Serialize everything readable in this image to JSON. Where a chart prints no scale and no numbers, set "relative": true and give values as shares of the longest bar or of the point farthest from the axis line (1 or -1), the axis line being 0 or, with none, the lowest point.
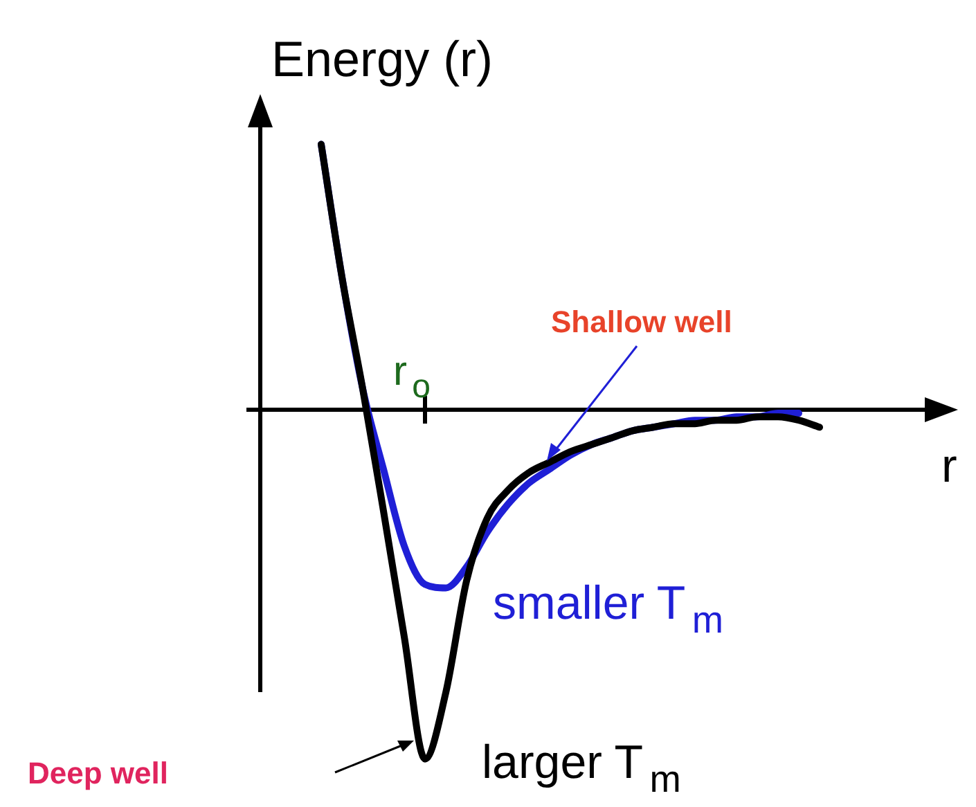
{
  "chart_data": {
    "type": "line",
    "relative": true,
    "ylabel": "Energy (r)",
    "xlabel": "r",
    "marker": "none",
    "categories": [
      null,
      null,
      null,
      null,
      null,
      null,
      null,
      null,
      null,
      null,
      null,
      null,
      null,
      null,
      null,
      null,
      null,
      null,
      null,
      null,
      null,
      null,
      null,
      null,
      null
    ],
    "series": [
      {
        "color": "#000000",
        "values": [
          0.76,
          0.38,
          0.06,
          -0.29,
          -0.65,
          -1,
          -0.81,
          -0.49,
          -0.31,
          -0.23,
          -0.18,
          -0.15,
          -0.12,
          -0.1,
          -0.08,
          -0.06,
          -0.05,
          -0.04,
          -0.04,
          -0.03,
          -0.03,
          -0.02,
          -0.02,
          -0.03,
          -0.05
        ]
      },
      {
        "color": "#1f1fd6",
        "values": [
          0.76,
          0.38,
          0.06,
          -0.17,
          -0.39,
          -0.5,
          -0.51,
          -0.45,
          -0.35,
          -0.27,
          -0.21,
          -0.17,
          -0.13,
          -0.1,
          -0.08,
          -0.06,
          -0.05,
          -0.04,
          -0.03,
          -0.03,
          -0.02,
          -0.02,
          -0.01,
          -0.01,
          null
        ]
      }
    ],
    "annotations": [
      "r$_{o}$",
      "Shallow well",
      "smaller T$_{m}$",
      "larger T$_{m}$",
      "Deep well"
    ]
  }
}
